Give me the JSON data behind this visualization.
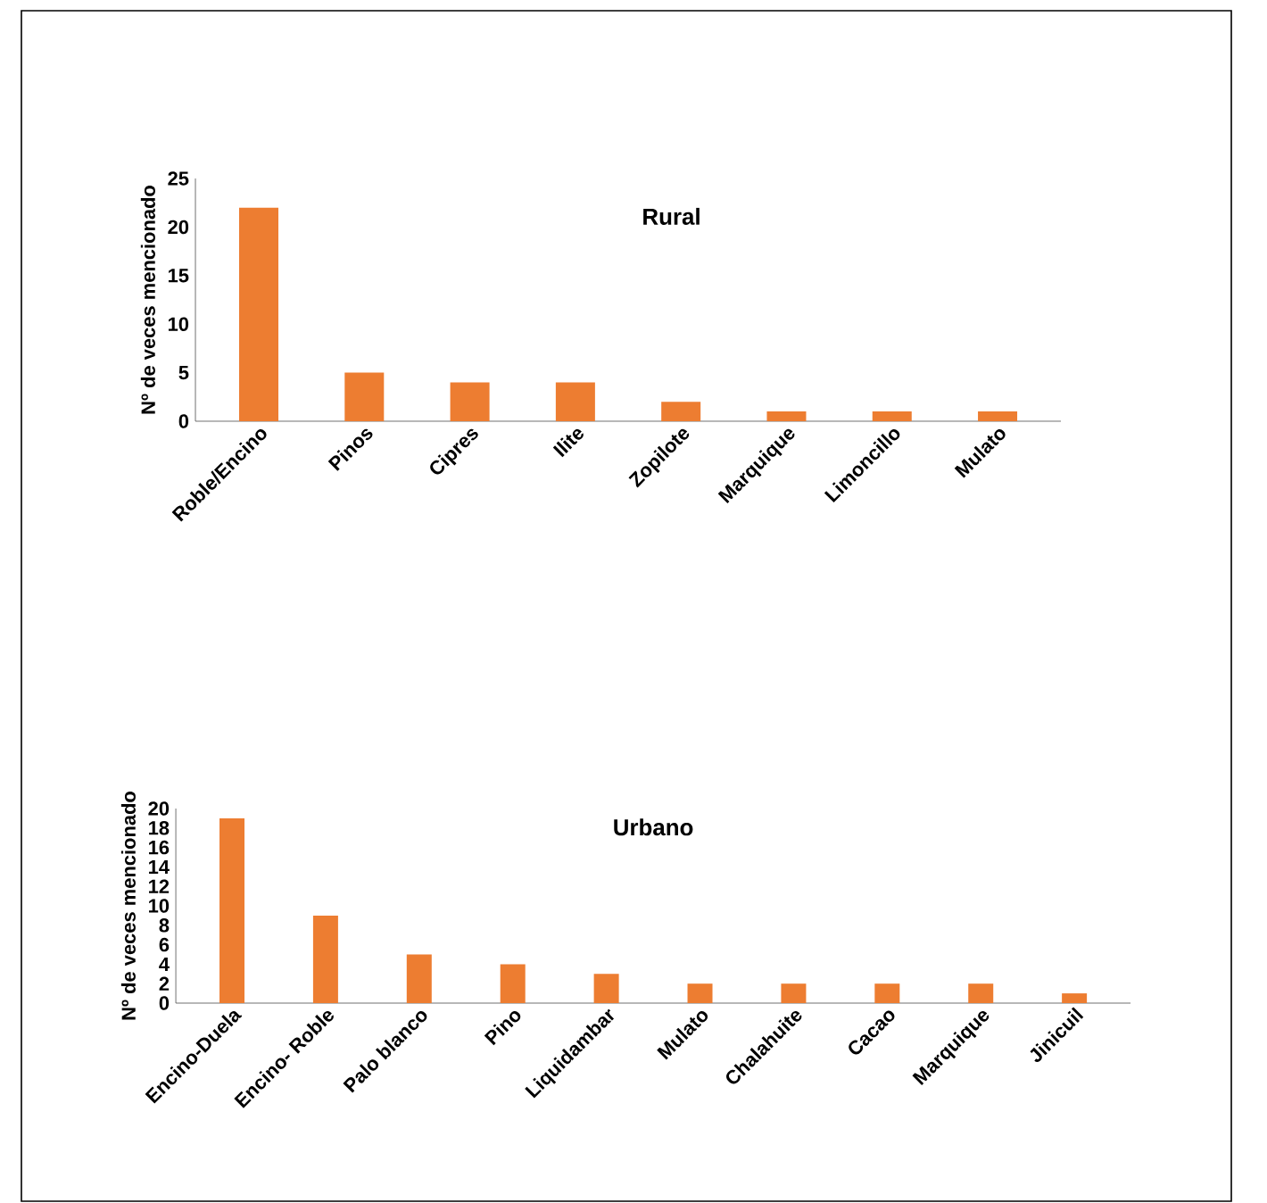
{
  "chart_data": [
    {
      "type": "bar",
      "title": "Rural",
      "ylabel": "Nº de veces mencionado",
      "categories": [
        "Roble/Encino",
        "Pinos",
        "Cipres",
        "Ilite",
        "Zopilote",
        "Marquique",
        "Limoncillo",
        "Mulato"
      ],
      "values": [
        22,
        5,
        4,
        4,
        2,
        1,
        1,
        1
      ],
      "color": "#ed7d31",
      "ylim": [
        0,
        25
      ],
      "yticks": [
        0,
        5,
        10,
        15,
        20,
        25
      ]
    },
    {
      "type": "bar",
      "title": "Urbano",
      "ylabel": "Nº de veces mencionado",
      "categories": [
        "Encino-Duela",
        "Encino- Roble",
        "Palo blanco",
        "Pino",
        "Liquidambar",
        "Mulato",
        "Chalahuite",
        "Cacao",
        "Marquique",
        "Jinicuil"
      ],
      "values": [
        19,
        9,
        5,
        4,
        3,
        2,
        2,
        2,
        2,
        1
      ],
      "color": "#ed7d31",
      "ylim": [
        0,
        20
      ],
      "yticks": [
        0,
        2,
        4,
        6,
        8,
        10,
        12,
        14,
        16,
        18,
        20
      ]
    }
  ]
}
